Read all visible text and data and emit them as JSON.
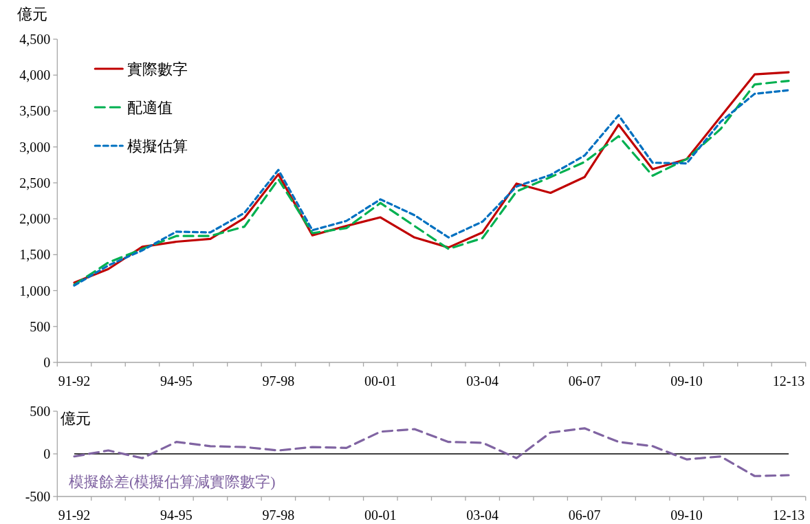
{
  "chart_data": [
    {
      "type": "line",
      "ylabel": "億元",
      "categories": [
        "91-92",
        null,
        null,
        "94-95",
        null,
        null,
        "97-98",
        null,
        null,
        "00-01",
        null,
        null,
        "03-04",
        null,
        null,
        "06-07",
        null,
        null,
        "09-10",
        null,
        null,
        "12-13"
      ],
      "ylim": [
        0,
        4500
      ],
      "yticks": [
        0,
        500,
        {
          "value": 1000,
          "label": "1,000"
        },
        {
          "value": 1500,
          "label": "1,500"
        },
        {
          "value": 2000,
          "label": "2,000"
        },
        {
          "value": 2500,
          "label": "2,500"
        },
        {
          "value": 3000,
          "label": "3,000"
        },
        {
          "value": 3500,
          "label": "3,500"
        },
        {
          "value": 4000,
          "label": "4,000"
        },
        {
          "value": 4500,
          "label": "4,500"
        }
      ],
      "legend": "top left",
      "series": [
        {
          "name": "實際數字",
          "color": "#c00000",
          "line_style": "solid",
          "values": [
            1110,
            1300,
            1610,
            1680,
            1720,
            2010,
            2620,
            1770,
            1900,
            2020,
            1740,
            1600,
            1810,
            2490,
            2360,
            2580,
            3310,
            2690,
            2830,
            3420,
            4010,
            4040
          ]
        },
        {
          "name": "配適值",
          "color": "#00b050",
          "line_style": "dashed",
          "values": [
            1080,
            1390,
            1580,
            1760,
            1760,
            1890,
            2550,
            1800,
            1870,
            2220,
            1900,
            1580,
            1730,
            2380,
            2580,
            2790,
            3150,
            2600,
            2830,
            3250,
            3870,
            3920
          ]
        },
        {
          "name": "模擬估算",
          "color": "#0070c0",
          "line_style": "dotted",
          "values": [
            1070,
            1350,
            1560,
            1820,
            1810,
            2080,
            2680,
            1840,
            1970,
            2270,
            2050,
            1740,
            1960,
            2450,
            2610,
            2880,
            3440,
            2780,
            2770,
            3350,
            3740,
            3790
          ]
        }
      ]
    },
    {
      "type": "line",
      "ylabel": "億元",
      "categories": [
        "91-92",
        null,
        null,
        "94-95",
        null,
        null,
        "97-98",
        null,
        null,
        "00-01",
        null,
        null,
        "03-04",
        null,
        null,
        "06-07",
        null,
        null,
        "09-10",
        null,
        null,
        "12-13"
      ],
      "ylim": [
        -500,
        500
      ],
      "yticks": [
        -500,
        0,
        500
      ],
      "ref_lines": [
        {
          "axis": "y",
          "value": 0,
          "color": "#000000"
        }
      ],
      "series": [
        {
          "name": "模擬餘差(模擬估算減實際數字)",
          "color": "#8064a2",
          "line_style": "dashed",
          "values": [
            -30,
            40,
            -50,
            140,
            90,
            80,
            40,
            80,
            70,
            260,
            290,
            140,
            130,
            -50,
            250,
            300,
            140,
            90,
            -65,
            -30,
            -260,
            -250
          ]
        }
      ]
    }
  ]
}
